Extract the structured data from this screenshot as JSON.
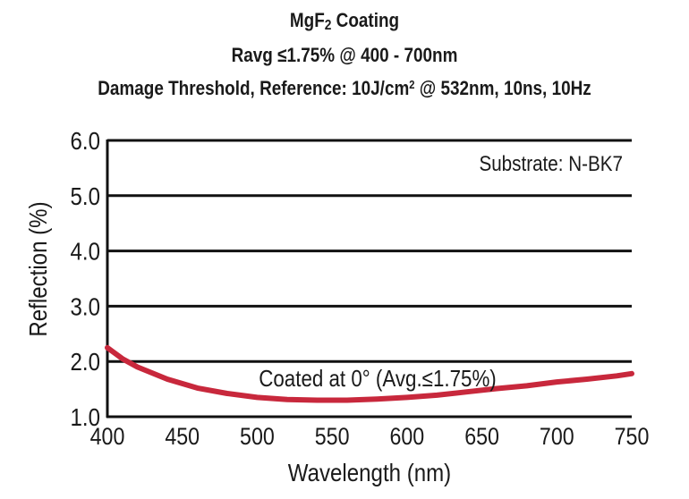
{
  "title": {
    "line1_main": "MgF",
    "line1_sub": "2",
    "line1_rest": " Coating",
    "line2": "Ravg ≤1.75% @ 400 - 700nm",
    "line3_a": "Damage Threshold, Reference: 10J/cm",
    "line3_sup": "2",
    "line3_b": " @ 532nm, 10ns, 10Hz"
  },
  "chart_data": {
    "type": "line",
    "xlabel": "Wavelength (nm)",
    "ylabel": "Reflection (%)",
    "xlim": [
      400,
      750
    ],
    "ylim": [
      1.0,
      6.0
    ],
    "x_ticks": [
      "400",
      "450",
      "500",
      "550",
      "600",
      "650",
      "700",
      "750"
    ],
    "y_ticks": [
      "1.0",
      "2.0",
      "3.0",
      "4.0",
      "5.0",
      "6.0"
    ],
    "grid": "horizontal",
    "annotations": {
      "substrate": "Substrate: N-BK7",
      "curve_label": "Coated at 0°  (Avg.≤1.75%)"
    },
    "series": [
      {
        "color": "#c8283c",
        "x": [
          400,
          410,
          420,
          440,
          460,
          480,
          500,
          520,
          540,
          560,
          580,
          600,
          620,
          640,
          660,
          680,
          700,
          720,
          740,
          750
        ],
        "y": [
          2.25,
          2.05,
          1.9,
          1.68,
          1.52,
          1.42,
          1.35,
          1.31,
          1.3,
          1.3,
          1.32,
          1.35,
          1.39,
          1.45,
          1.51,
          1.56,
          1.63,
          1.68,
          1.74,
          1.78
        ]
      }
    ]
  }
}
